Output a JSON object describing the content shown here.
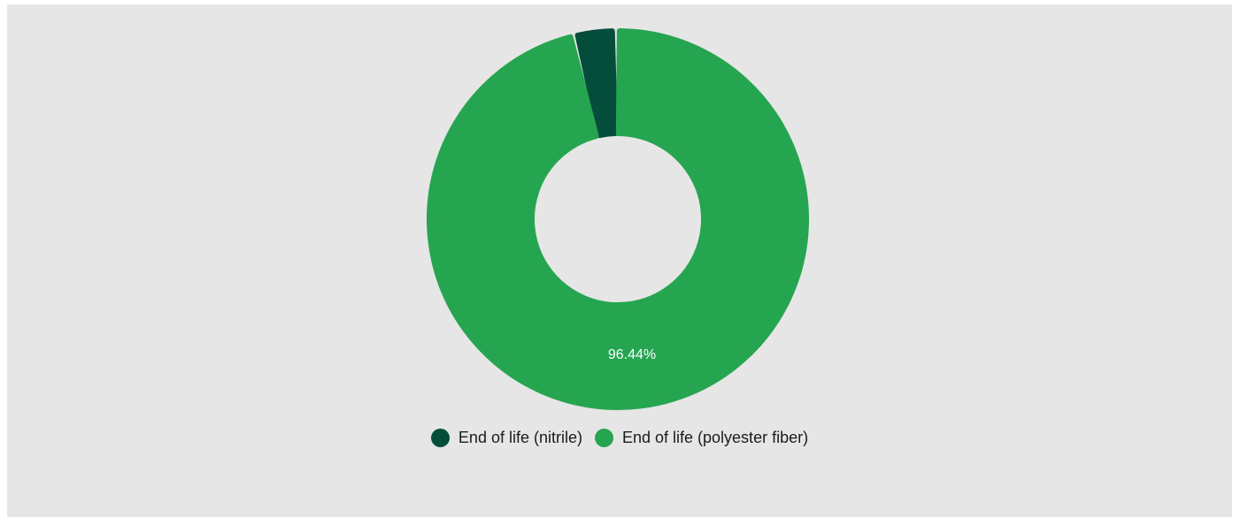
{
  "chart_data": {
    "type": "pie",
    "variant": "donut",
    "title": "",
    "slices": [
      {
        "label": "End of life (nitrile)",
        "value": 3.56,
        "color": "#054d3b"
      },
      {
        "label": "End of life (polyester fiber)",
        "value": 96.44,
        "color": "#26a550",
        "data_label": "96.44%"
      }
    ],
    "legend": {
      "position": "bottom-center",
      "items": [
        {
          "label": "End of life (nitrile)",
          "color": "#054d3b"
        },
        {
          "label": "End of life (polyester fiber)",
          "color": "#26a550"
        }
      ]
    }
  }
}
